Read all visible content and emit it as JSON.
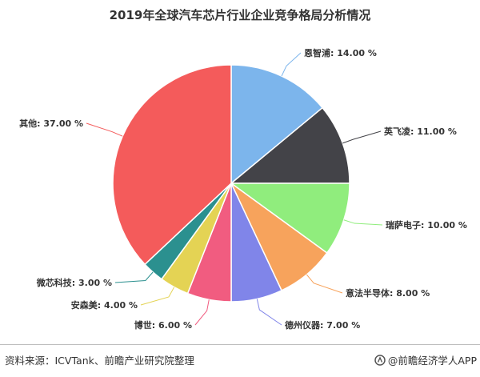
{
  "chart_data": {
    "type": "pie",
    "title": "2019年全球汽车芯片行业企业竞争格局分析情况",
    "slices": [
      {
        "label": "恩智浦",
        "value": 14.0,
        "text": "恩智浦: 14.00 %",
        "color": "#7cb5ec"
      },
      {
        "label": "英飞凌",
        "value": 11.0,
        "text": "英飞凌: 11.00 %",
        "color": "#434348"
      },
      {
        "label": "瑞萨电子",
        "value": 10.0,
        "text": "瑞萨电子: 10.00 %",
        "color": "#90ed7d"
      },
      {
        "label": "意法半导体",
        "value": 8.0,
        "text": "意法半导体: 8.00 %",
        "color": "#f7a35c"
      },
      {
        "label": "德州仪器",
        "value": 7.0,
        "text": "德州仪器: 7.00 %",
        "color": "#8085e9"
      },
      {
        "label": "博世",
        "value": 6.0,
        "text": "博世: 6.00 %",
        "color": "#f15c80"
      },
      {
        "label": "安森美",
        "value": 4.0,
        "text": "安森美: 4.00 %",
        "color": "#e4d354"
      },
      {
        "label": "微芯科技",
        "value": 3.0,
        "text": "微芯科技: 3.00 %",
        "color": "#2b908f"
      },
      {
        "label": "其他",
        "value": 37.0,
        "text": "其他: 37.00 %",
        "color": "#f45b5b"
      }
    ]
  },
  "footer": {
    "source": "资料来源：ICVTank、前瞻产业研究院整理",
    "brand": "@前瞻经济学人APP"
  }
}
